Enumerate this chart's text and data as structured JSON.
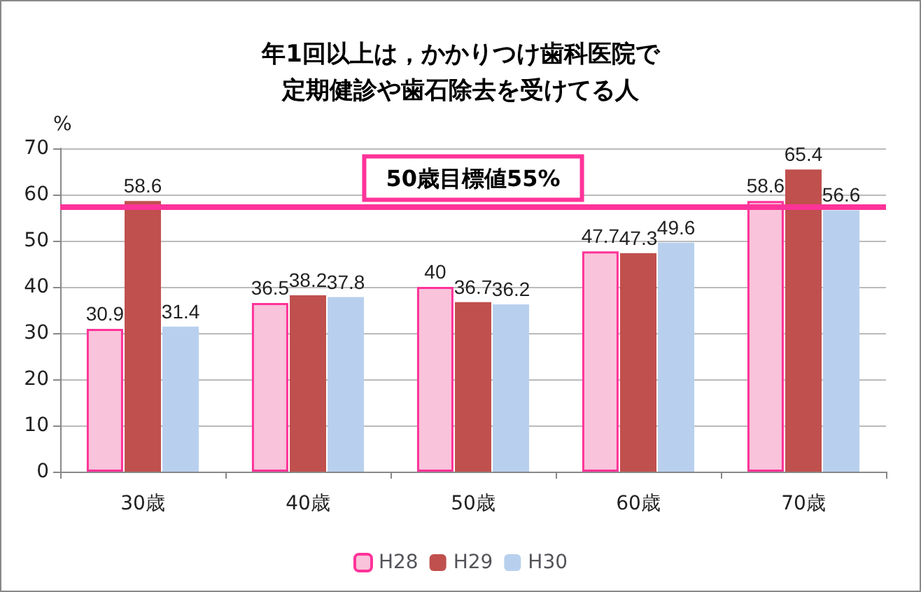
{
  "chart_data": {
    "type": "bar",
    "title": "年1回以上は，かかりつけ歯科医院で定期健診や歯石除去を受けてる人",
    "ylabel": "%",
    "categories": [
      "30歳",
      "40歳",
      "50歳",
      "60歳",
      "70歳"
    ],
    "series": [
      {
        "name": "H28",
        "color": "#f9c3db",
        "values": [
          30.9,
          36.5,
          40,
          47.7,
          58.6
        ]
      },
      {
        "name": "H29",
        "color": "#c0504d",
        "values": [
          58.6,
          38.2,
          36.7,
          47.3,
          65.4
        ]
      },
      {
        "name": "H30",
        "color": "#b8d0ee",
        "values": [
          31.4,
          37.8,
          36.2,
          49.6,
          56.6
        ]
      }
    ],
    "ylim": [
      0,
      70
    ],
    "yticks": [
      0,
      10,
      20,
      30,
      40,
      50,
      60,
      70
    ],
    "grid": "y",
    "legend": "bottom",
    "data_labels": true,
    "ref_lines": [
      {
        "axis": "y",
        "value": 57.5,
        "label": "50歳目標値55%",
        "color": "#ff3399"
      }
    ]
  }
}
